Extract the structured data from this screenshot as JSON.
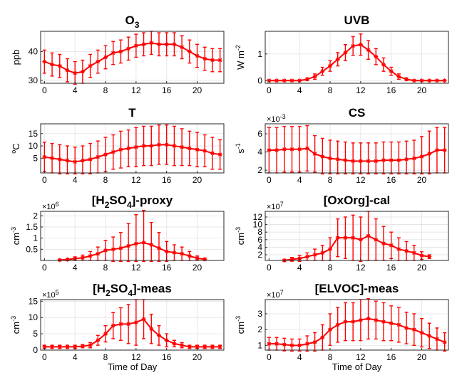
{
  "chart_data": [
    {
      "type": "line",
      "title_main": "O",
      "title_sub": "3",
      "title_tail": "",
      "ylabel_main": "ppb",
      "ylabel_sup": "",
      "exponent": "",
      "xlim": [
        -0.5,
        23.5
      ],
      "ylim": [
        29,
        47
      ],
      "xticks": [
        0,
        4,
        8,
        12,
        16,
        20
      ],
      "yticks": [
        30,
        40
      ],
      "color": "#ff0000",
      "series": [
        {
          "x": [
            0,
            1,
            2,
            3,
            4,
            5,
            6,
            7,
            8,
            9,
            10,
            11,
            12,
            13,
            14,
            15,
            16,
            17,
            18,
            19,
            20,
            21,
            22,
            23
          ],
          "values": [
            36.5,
            35.5,
            35,
            33.5,
            32.5,
            33,
            35,
            36.5,
            38,
            39.5,
            40,
            41,
            42,
            42.5,
            43,
            42.5,
            42.5,
            42.5,
            41.5,
            40,
            38.5,
            37.5,
            37,
            37
          ],
          "err": [
            4,
            4,
            4,
            4,
            4,
            4,
            4,
            4,
            4,
            4,
            4,
            4,
            4,
            4,
            4,
            4,
            4,
            4,
            4,
            4,
            4,
            4,
            4,
            4
          ]
        }
      ]
    },
    {
      "type": "line",
      "title_main": "UVB",
      "title_sub": "",
      "title_tail": "",
      "ylabel_main": "W m",
      "ylabel_sup": "-2",
      "exponent": "",
      "xlim": [
        -0.5,
        23.5
      ],
      "ylim": [
        -0.1,
        1.85
      ],
      "xticks": [
        0,
        4,
        8,
        12,
        16,
        20
      ],
      "yticks": [
        0,
        1
      ],
      "color": "#ff0000",
      "series": [
        {
          "x": [
            0,
            1,
            2,
            3,
            4,
            5,
            6,
            7,
            8,
            9,
            10,
            11,
            12,
            13,
            14,
            15,
            16,
            17,
            18,
            19,
            20,
            21,
            22,
            23
          ],
          "values": [
            0,
            0,
            0,
            0,
            0,
            0.05,
            0.15,
            0.35,
            0.55,
            0.8,
            1.05,
            1.3,
            1.35,
            1.15,
            0.9,
            0.6,
            0.35,
            0.15,
            0.05,
            0,
            0,
            0,
            0,
            0
          ],
          "err": [
            0,
            0,
            0,
            0,
            0,
            0.05,
            0.1,
            0.15,
            0.2,
            0.25,
            0.3,
            0.35,
            0.4,
            0.35,
            0.3,
            0.25,
            0.15,
            0.1,
            0.05,
            0,
            0,
            0,
            0,
            0
          ]
        }
      ]
    },
    {
      "type": "line",
      "title_main": "T",
      "title_sub": "",
      "title_tail": "",
      "ylabel_main": "C",
      "ylabel_sup": "o",
      "exponent": "",
      "xlim": [
        -0.5,
        23.5
      ],
      "ylim": [
        -1,
        19
      ],
      "xticks": [
        0,
        4,
        8,
        12,
        16,
        20
      ],
      "yticks": [
        5,
        10,
        15
      ],
      "color": "#ff0000",
      "series": [
        {
          "x": [
            0,
            1,
            2,
            3,
            4,
            5,
            6,
            7,
            8,
            9,
            10,
            11,
            12,
            13,
            14,
            15,
            16,
            17,
            18,
            19,
            20,
            21,
            22,
            23
          ],
          "values": [
            5.5,
            5,
            4.5,
            4,
            3.5,
            4,
            4.5,
            5.5,
            6.5,
            7.5,
            8.5,
            9,
            9.5,
            10,
            10,
            10.5,
            10.5,
            10,
            9.5,
            9,
            8.5,
            8,
            7,
            6.5
          ],
          "err": [
            6,
            6,
            6,
            6,
            6,
            6,
            6.5,
            6.5,
            7,
            7,
            7.5,
            7.5,
            8,
            8,
            8,
            8,
            8,
            8,
            7.5,
            7,
            7,
            6.5,
            6.5,
            6
          ]
        }
      ]
    },
    {
      "type": "line",
      "title_main": "CS",
      "title_sub": "",
      "title_tail": "",
      "ylabel_main": "s",
      "ylabel_sup": "-1",
      "exponent": "-3",
      "xlim": [
        -0.5,
        23.5
      ],
      "ylim": [
        1.7,
        7.1
      ],
      "xticks": [
        0,
        4,
        8,
        12,
        16,
        20
      ],
      "yticks": [
        2,
        4,
        6
      ],
      "color": "#ff0000",
      "series": [
        {
          "x": [
            0,
            1,
            2,
            3,
            4,
            5,
            6,
            7,
            8,
            9,
            10,
            11,
            12,
            13,
            14,
            15,
            16,
            17,
            18,
            19,
            20,
            21,
            22,
            23
          ],
          "values": [
            4.2,
            4.2,
            4.3,
            4.3,
            4.3,
            4.4,
            3.8,
            3.5,
            3.3,
            3.2,
            3.1,
            3,
            3,
            3,
            3,
            3.1,
            3.1,
            3.1,
            3.2,
            3.3,
            3.5,
            3.8,
            4.2,
            4.2
          ],
          "err": [
            2.5,
            2.5,
            2.5,
            2.5,
            2.5,
            2.5,
            2,
            2,
            2,
            2,
            2,
            2,
            2,
            2,
            2,
            2,
            2,
            2,
            2,
            2,
            2.2,
            2.5,
            2.5,
            2.5
          ]
        }
      ]
    },
    {
      "type": "line",
      "title_main": "[H",
      "title_sub": "2",
      "title_tail": "SO|4|]-proxy",
      "ylabel_main": "cm",
      "ylabel_sup": "-3",
      "exponent": "6",
      "xlim": [
        -0.5,
        23.5
      ],
      "ylim": [
        0,
        2.2
      ],
      "xticks": [
        0,
        4,
        8,
        12,
        16,
        20
      ],
      "yticks": [
        0.5,
        1,
        1.5,
        2
      ],
      "ytick_labels": [
        "0.5",
        "1",
        "1.5",
        "2"
      ],
      "color": "#ff0000",
      "series": [
        {
          "x": [
            2,
            3,
            4,
            5,
            6,
            7,
            8,
            9,
            10,
            11,
            12,
            13,
            14,
            15,
            16,
            17,
            18,
            19,
            20,
            21
          ],
          "values": [
            0.02,
            0.04,
            0.08,
            0.12,
            0.2,
            0.3,
            0.45,
            0.5,
            0.55,
            0.65,
            0.75,
            0.8,
            0.7,
            0.55,
            0.4,
            0.35,
            0.3,
            0.2,
            0.1,
            0.05
          ],
          "err": [
            0.02,
            0.04,
            0.08,
            0.12,
            0.2,
            0.3,
            0.45,
            0.55,
            0.7,
            1,
            1.3,
            1.5,
            1,
            0.7,
            0.45,
            0.35,
            0.3,
            0.2,
            0.1,
            0.05
          ]
        }
      ]
    },
    {
      "type": "line",
      "title_main": "[OxOrg]-cal",
      "title_sub": "",
      "title_tail": "",
      "ylabel_main": "cm",
      "ylabel_sup": "-3",
      "exponent": "7",
      "xlim": [
        -0.5,
        23.5
      ],
      "ylim": [
        0.5,
        13.5
      ],
      "xticks": [
        0,
        4,
        8,
        12,
        16,
        20
      ],
      "yticks": [
        2,
        4,
        6,
        8,
        10,
        12
      ],
      "color": "#ff0000",
      "series": [
        {
          "x": [
            2,
            3,
            4,
            5,
            6,
            7,
            8,
            9,
            10,
            11,
            12,
            13,
            14,
            15,
            16,
            17,
            18,
            19,
            20,
            21
          ],
          "values": [
            0.5,
            0.8,
            1,
            1.5,
            2,
            2.5,
            3.5,
            6.5,
            6.5,
            6.5,
            6,
            7,
            6,
            5,
            4.5,
            3.5,
            3,
            2.5,
            1.8,
            1.5
          ],
          "err": [
            0.3,
            0.5,
            0.8,
            1,
            1.5,
            2,
            3,
            5,
            5.5,
            6,
            6,
            6.5,
            5.5,
            4.5,
            3.5,
            3,
            2.5,
            2,
            1,
            0.5
          ]
        }
      ]
    },
    {
      "type": "line",
      "title_main": "[H",
      "title_sub": "2",
      "title_tail": "SO|4|]-meas",
      "ylabel_main": "cm",
      "ylabel_sup": "-3",
      "exponent": "5",
      "xlim": [
        -0.5,
        23.5
      ],
      "ylim": [
        0,
        15.5
      ],
      "xticks": [
        0,
        4,
        8,
        12,
        16,
        20
      ],
      "yticks": [
        0,
        5,
        10,
        15
      ],
      "xlabel": "Time of Day",
      "color": "#ff0000",
      "series": [
        {
          "x": [
            0,
            1,
            2,
            3,
            4,
            5,
            6,
            7,
            8,
            9,
            10,
            11,
            12,
            13,
            14,
            15,
            16,
            17,
            18,
            19,
            20,
            21,
            22,
            23
          ],
          "values": [
            1,
            1,
            1,
            1,
            1,
            1.2,
            1.5,
            3,
            5,
            7.5,
            8,
            8,
            8.5,
            9.5,
            6.5,
            4.5,
            3,
            2,
            1.5,
            1,
            1,
            1,
            1,
            1
          ],
          "err": [
            0.5,
            0.5,
            0.5,
            0.5,
            0.5,
            0.5,
            0.8,
            1.5,
            2.5,
            4,
            5,
            6,
            7,
            6,
            4.5,
            3,
            2,
            1,
            0.8,
            0.5,
            0.5,
            0.5,
            0.5,
            0.5
          ]
        }
      ]
    },
    {
      "type": "line",
      "title_main": "[ELVOC]-meas",
      "title_sub": "",
      "title_tail": "",
      "ylabel_main": "cm",
      "ylabel_sup": "-3",
      "exponent": "7",
      "xlim": [
        -0.5,
        23.5
      ],
      "ylim": [
        0.7,
        3.9
      ],
      "xticks": [
        0,
        4,
        8,
        12,
        16,
        20
      ],
      "yticks": [
        1,
        2,
        3
      ],
      "xlabel": "Time of Day",
      "color": "#ff0000",
      "series": [
        {
          "x": [
            0,
            1,
            2,
            3,
            4,
            5,
            6,
            7,
            8,
            9,
            10,
            11,
            12,
            13,
            14,
            15,
            16,
            17,
            18,
            19,
            20,
            21,
            22,
            23
          ],
          "values": [
            1.1,
            1.1,
            1.05,
            1,
            1,
            1.1,
            1.2,
            1.5,
            2,
            2.3,
            2.5,
            2.5,
            2.6,
            2.7,
            2.6,
            2.5,
            2.4,
            2.3,
            2.1,
            2,
            1.8,
            1.6,
            1.4,
            1.2
          ],
          "err": [
            0.4,
            0.4,
            0.4,
            0.4,
            0.4,
            0.5,
            0.6,
            0.8,
            1,
            1.1,
            1.2,
            1.2,
            1.3,
            1.3,
            1.2,
            1.2,
            1.1,
            1.1,
            1,
            1,
            0.9,
            0.8,
            0.7,
            0.6
          ]
        }
      ]
    }
  ]
}
